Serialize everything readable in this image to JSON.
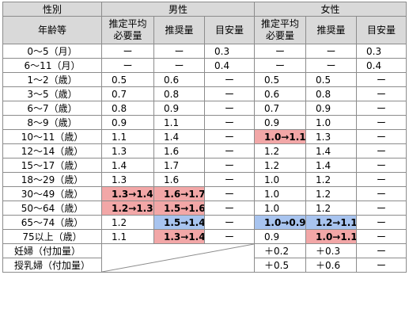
{
  "header": {
    "sex": "性別",
    "male": "男性",
    "female": "女性",
    "age_group": "年齢等",
    "ear_l1": "推定平均",
    "ear_l2": "必要量",
    "rda": "推奨量",
    "ai": "目安量"
  },
  "rows": [
    {
      "label": "0～5（月）",
      "m_ear": "ー",
      "m_rda": "ー",
      "m_ai": "0.3",
      "f_ear": "ー",
      "f_rda": "ー",
      "f_ai": "0.3"
    },
    {
      "label": "6～11（月）",
      "m_ear": "ー",
      "m_rda": "ー",
      "m_ai": "0.4",
      "f_ear": "ー",
      "f_rda": "ー",
      "f_ai": "0.4"
    },
    {
      "label": "1～2（歳）",
      "m_ear": "0.5",
      "m_rda": "0.6",
      "m_ai": "ー",
      "f_ear": "0.5",
      "f_rda": "0.5",
      "f_ai": "ー"
    },
    {
      "label": "3～5（歳）",
      "m_ear": "0.7",
      "m_rda": "0.8",
      "m_ai": "ー",
      "f_ear": "0.6",
      "f_rda": "0.8",
      "f_ai": "ー"
    },
    {
      "label": "6～7（歳）",
      "m_ear": "0.8",
      "m_rda": "0.9",
      "m_ai": "ー",
      "f_ear": "0.7",
      "f_rda": "0.9",
      "f_ai": "ー"
    },
    {
      "label": "8～9（歳）",
      "m_ear": "0.9",
      "m_rda": "1.1",
      "m_ai": "ー",
      "f_ear": "0.9",
      "f_rda": "1.0",
      "f_ai": "ー"
    },
    {
      "label": "10～11（歳）",
      "m_ear": "1.1",
      "m_rda": "1.4",
      "m_ai": "ー",
      "f_ear": "1.0→1.1",
      "f_rda": "1.3",
      "f_ai": "ー"
    },
    {
      "label": "12～14（歳）",
      "m_ear": "1.3",
      "m_rda": "1.6",
      "m_ai": "ー",
      "f_ear": "1.2",
      "f_rda": "1.4",
      "f_ai": "ー"
    },
    {
      "label": "15～17（歳）",
      "m_ear": "1.4",
      "m_rda": "1.7",
      "m_ai": "ー",
      "f_ear": "1.2",
      "f_rda": "1.4",
      "f_ai": "ー"
    },
    {
      "label": "18～29（歳）",
      "m_ear": "1.3",
      "m_rda": "1.6",
      "m_ai": "ー",
      "f_ear": "1.0",
      "f_rda": "1.2",
      "f_ai": "ー"
    },
    {
      "label": "30～49（歳）",
      "m_ear": "1.3→1.4",
      "m_rda": "1.6→1.7",
      "m_ai": "ー",
      "f_ear": "1.0",
      "f_rda": "1.2",
      "f_ai": "ー"
    },
    {
      "label": "50～64（歳）",
      "m_ear": "1.2→1.3",
      "m_rda": "1.5→1.6",
      "m_ai": "ー",
      "f_ear": "1.0",
      "f_rda": "1.2",
      "f_ai": "ー"
    },
    {
      "label": "65～74（歳）",
      "m_ear": "1.2",
      "m_rda": "1.5→1.4",
      "m_ai": "ー",
      "f_ear": "1.0→0.9",
      "f_rda": "1.2→1.1",
      "f_ai": "ー"
    },
    {
      "label": "75以上（歳）",
      "m_ear": "1.1",
      "m_rda": "1.3→1.4",
      "m_ai": "ー",
      "f_ear": "0.9",
      "f_rda": "1.0→1.1",
      "f_ai": "ー"
    }
  ],
  "extra_rows": [
    {
      "label": "妊婦（付加量）",
      "f_ear": "＋0.2",
      "f_rda": "＋0.3",
      "f_ai": "ー"
    },
    {
      "label": "授乳婦（付加量）",
      "f_ear": "＋0.5",
      "f_rda": "＋0.6",
      "f_ai": "ー"
    }
  ],
  "colors": {
    "increase": "#f2a7a7",
    "decrease": "#a8c4ef",
    "header_bg": "#d9d9d9",
    "border": "#8c8c8c"
  }
}
